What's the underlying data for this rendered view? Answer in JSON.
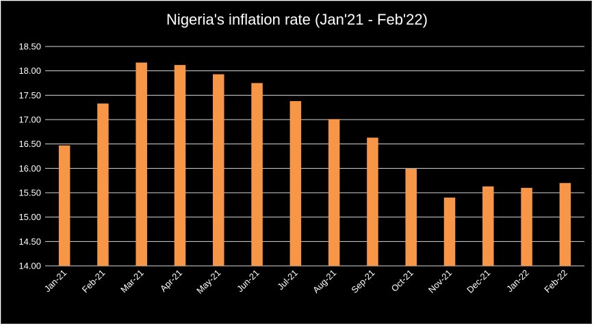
{
  "chart_data": {
    "type": "bar",
    "title": "Nigeria's inflation rate (Jan'21 - Feb'22)",
    "xlabel": "",
    "ylabel": "",
    "categories": [
      "Jan-21",
      "Feb-21",
      "Mar-21",
      "Apr-21",
      "May-21",
      "Jun-21",
      "Jul-21",
      "Aug-21",
      "Sep-21",
      "Oct-21",
      "Nov-21",
      "Dec-21",
      "Jan-22",
      "Feb-22"
    ],
    "values": [
      16.47,
      17.33,
      18.17,
      18.12,
      17.93,
      17.75,
      17.38,
      17.01,
      16.63,
      15.99,
      15.4,
      15.63,
      15.6,
      15.7
    ],
    "ylim": [
      14.0,
      18.5
    ],
    "yticks": [
      "14.00",
      "14.50",
      "15.00",
      "15.50",
      "16.00",
      "16.50",
      "17.00",
      "17.50",
      "18.00",
      "18.50"
    ],
    "grid": true,
    "legend": "none",
    "colors": {
      "bar": "#F79646",
      "background": "#000000",
      "text": "#FFFFFF",
      "grid": "#D9D9D9"
    }
  }
}
